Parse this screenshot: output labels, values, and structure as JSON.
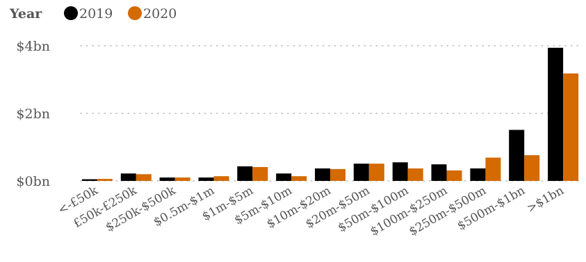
{
  "chart_data": {
    "type": "bar",
    "title": "",
    "xlabel": "",
    "ylabel": "",
    "legend": {
      "title": "Year",
      "placement": "top-left"
    },
    "categories": [
      "<-£50k",
      "£50k-£250k",
      "$250k-$500k",
      "$0.5m-$1m",
      "$1m-$5m",
      "$5m-$10m",
      "$10m-$20m",
      "$20m-$50m",
      "$50m-$100m",
      "$100m-$250m",
      "$250m-$500m",
      "$500m-$1bn",
      ">$1bn"
    ],
    "series": [
      {
        "name": "2019",
        "color": "#000000",
        "values": [
          0.05,
          0.22,
          0.1,
          0.1,
          0.43,
          0.22,
          0.37,
          0.51,
          0.55,
          0.49,
          0.37,
          1.51,
          3.94
        ]
      },
      {
        "name": "2020",
        "color": "#d46a00",
        "values": [
          0.06,
          0.2,
          0.1,
          0.14,
          0.41,
          0.14,
          0.35,
          0.51,
          0.37,
          0.31,
          0.69,
          0.76,
          3.18
        ]
      }
    ],
    "ylim": [
      0,
      4
    ],
    "y_ticks": [
      0,
      2,
      4
    ],
    "y_tick_labels": [
      "$0bn",
      "$2bn",
      "$4bn"
    ],
    "grid": true
  }
}
